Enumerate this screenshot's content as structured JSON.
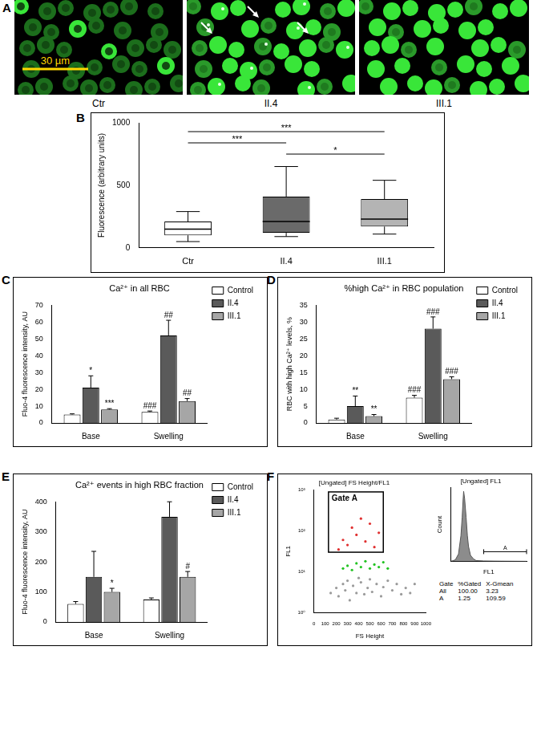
{
  "images": {
    "panel_label": "A",
    "scale_bar": "30 µm",
    "captions": [
      "Ctr",
      "II.4",
      "III.1"
    ]
  },
  "chart_data": [
    {
      "panel_label": "B",
      "type": "box",
      "categories": [
        "Ctr",
        "II.4",
        "III.1"
      ],
      "boxes": [
        {
          "min": 50,
          "q1": 100,
          "median": 150,
          "q3": 210,
          "max": 290
        },
        {
          "min": 90,
          "q1": 120,
          "median": 210,
          "q3": 410,
          "max": 650
        },
        {
          "min": 110,
          "q1": 170,
          "median": 230,
          "q3": 390,
          "max": 540
        }
      ],
      "colors": [
        "#ffffff",
        "#6a6a6a",
        "#b4b4b4"
      ],
      "y_label": "Fluorescence (arbitrary units)",
      "ylim": [
        0,
        1000
      ],
      "yticks": [
        0,
        500,
        1000
      ],
      "grid": false,
      "annotations": [
        {
          "between": [
            "Ctr",
            "III.1"
          ],
          "label": "***"
        },
        {
          "between": [
            "Ctr",
            "II.4"
          ],
          "label": "***"
        },
        {
          "between": [
            "II.4",
            "III.1"
          ],
          "label": "*"
        }
      ]
    },
    {
      "panel_label": "C",
      "type": "bar",
      "title": "Ca²⁺ in all RBC",
      "y_label": "Fluo-4 fluorescence intensity, AU",
      "categories": [
        "Base",
        "Swelling"
      ],
      "series": [
        {
          "name": "Control",
          "color": "#ffffff",
          "values": [
            5,
            6.5
          ],
          "errors": [
            0.4,
            0.6
          ],
          "annotations": [
            null,
            "###"
          ]
        },
        {
          "name": "II.4",
          "color": "#5a5a5a",
          "values": [
            21,
            52
          ],
          "errors": [
            7,
            9
          ],
          "annotations": [
            "*",
            "##"
          ]
        },
        {
          "name": "III.1",
          "color": "#a6a6a6",
          "values": [
            8,
            13
          ],
          "errors": [
            0.5,
            1.5
          ],
          "annotations": [
            "***",
            "##"
          ]
        }
      ],
      "ylim": [
        0,
        70
      ],
      "yticks": [
        0,
        10,
        20,
        30,
        40,
        50,
        60,
        70
      ],
      "grid": false,
      "legend": "right"
    },
    {
      "panel_label": "D",
      "type": "bar",
      "title": "%high Ca²⁺ in RBC population",
      "y_label": "RBC with high Ca²⁺ levels, %",
      "categories": [
        "Base",
        "Swelling"
      ],
      "series": [
        {
          "name": "Control",
          "color": "#ffffff",
          "values": [
            1,
            7.5
          ],
          "errors": [
            0.4,
            0.7
          ],
          "annotations": [
            null,
            "###"
          ]
        },
        {
          "name": "II.4",
          "color": "#5a5a5a",
          "values": [
            5,
            28
          ],
          "errors": [
            3,
            3.5
          ],
          "annotations": [
            "**",
            "###"
          ]
        },
        {
          "name": "III.1",
          "color": "#a6a6a6",
          "values": [
            2,
            13
          ],
          "errors": [
            0.5,
            0.7
          ],
          "annotations": [
            "**",
            "###"
          ]
        }
      ],
      "ylim": [
        0,
        35
      ],
      "yticks": [
        0,
        5,
        10,
        15,
        20,
        25,
        30,
        35
      ],
      "grid": false,
      "legend": "right"
    },
    {
      "panel_label": "E",
      "type": "bar",
      "title": "Ca²⁺ events in high RBC fraction",
      "y_label": "Fluo-4 fluorescence intensity, AU",
      "categories": [
        "Base",
        "Swelling"
      ],
      "series": [
        {
          "name": "Control",
          "color": "#ffffff",
          "values": [
            60,
            75
          ],
          "errors": [
            8,
            5
          ],
          "annotations": [
            null,
            null
          ]
        },
        {
          "name": "II.4",
          "color": "#5a5a5a",
          "values": [
            150,
            350
          ],
          "errors": [
            85,
            50
          ],
          "annotations": [
            null,
            null
          ]
        },
        {
          "name": "III.1",
          "color": "#a6a6a6",
          "values": [
            100,
            150
          ],
          "errors": [
            12,
            18
          ],
          "annotations": [
            "*",
            "#"
          ]
        }
      ],
      "ylim": [
        0,
        400
      ],
      "yticks": [
        0,
        100,
        200,
        300,
        400
      ],
      "grid": false,
      "legend": "right"
    },
    {
      "panel_label": "F",
      "type": "scatter",
      "title": "[Ungated] FS Height/FL1",
      "x_label": "FS Height",
      "y_label": "FL1",
      "log": "y",
      "xlim": [
        0,
        1000
      ],
      "xticks": [
        0,
        100,
        200,
        300,
        400,
        500,
        600,
        700,
        800,
        900,
        1000
      ],
      "ylim": [
        1,
        1000
      ],
      "yticks": [
        {
          "value": 1,
          "label": "10⁰"
        },
        {
          "value": 10,
          "label": "10¹"
        },
        {
          "value": 100,
          "label": "10²"
        },
        {
          "value": 1000,
          "label": "10³"
        }
      ],
      "grid": false,
      "series": [
        {
          "color": "#9a9a9a",
          "points": [
            [
              150,
              3
            ],
            [
              200,
              4
            ],
            [
              220,
              2.5
            ],
            [
              260,
              5
            ],
            [
              280,
              3.5
            ],
            [
              300,
              6
            ],
            [
              320,
              2
            ],
            [
              350,
              4.5
            ],
            [
              380,
              3
            ],
            [
              400,
              7
            ],
            [
              420,
              5.5
            ],
            [
              450,
              2.8
            ],
            [
              480,
              4
            ],
            [
              500,
              6.5
            ],
            [
              520,
              3.2
            ],
            [
              560,
              5
            ],
            [
              600,
              2.5
            ],
            [
              620,
              4.2
            ],
            [
              660,
              6
            ],
            [
              700,
              3.5
            ],
            [
              740,
              5
            ],
            [
              780,
              2.8
            ],
            [
              820,
              4
            ],
            [
              860,
              3
            ],
            [
              900,
              5
            ]
          ]
        },
        {
          "color": "#22c322",
          "points": [
            [
              260,
              12
            ],
            [
              300,
              14
            ],
            [
              340,
              11
            ],
            [
              380,
              16
            ],
            [
              420,
              13
            ],
            [
              460,
              18
            ],
            [
              500,
              12
            ],
            [
              540,
              15
            ],
            [
              580,
              13
            ],
            [
              620,
              17
            ],
            [
              660,
              12
            ]
          ]
        },
        {
          "color": "#e03030",
          "points": [
            [
              220,
              35
            ],
            [
              260,
              60
            ],
            [
              300,
              45
            ],
            [
              340,
              120
            ],
            [
              380,
              80
            ],
            [
              420,
              200
            ],
            [
              460,
              55
            ],
            [
              500,
              150
            ],
            [
              540,
              40
            ],
            [
              580,
              90
            ]
          ]
        }
      ],
      "gate": {
        "label": "Gate A",
        "x": [
          130,
          620
        ],
        "y": [
          30,
          900
        ]
      }
    },
    {
      "type": "area",
      "title": "[Ungated] FL1",
      "x_label": "FL1",
      "y_label": "Count",
      "log": "x",
      "x": [
        1,
        1.5,
        2,
        2.5,
        2.8,
        3,
        3.2,
        3.5,
        4,
        4.5,
        5,
        6,
        8,
        10,
        20,
        50,
        100,
        1000
      ],
      "values": [
        0,
        2,
        10,
        35,
        60,
        80,
        95,
        85,
        60,
        35,
        20,
        8,
        3,
        1,
        0.5,
        0.3,
        0.2,
        0
      ],
      "xlim": [
        1,
        1000
      ],
      "ylim": [
        0,
        100
      ],
      "tick_labels": false,
      "grid": false,
      "color": "#8c8c8c",
      "gate": {
        "label": "A",
        "x": [
          20,
          1000
        ]
      },
      "table": {
        "header": [
          "Gate",
          "%Gated",
          "X-Gmean"
        ],
        "rows": [
          [
            "All",
            "100.00",
            "3.23"
          ],
          [
            "A",
            "1.25",
            "109.59"
          ]
        ]
      }
    }
  ]
}
